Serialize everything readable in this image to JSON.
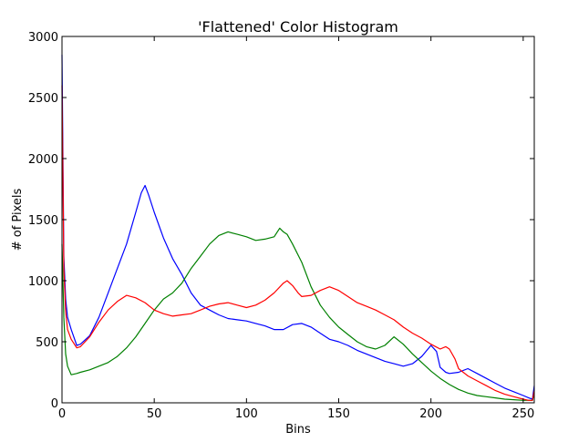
{
  "chart_data": {
    "type": "line",
    "title": "'Flattened' Color Histogram",
    "xlabel": "Bins",
    "ylabel": "# of Pixels",
    "xlim": [
      0,
      256
    ],
    "ylim": [
      0,
      3000
    ],
    "xticks": [
      0,
      50,
      100,
      150,
      200,
      250
    ],
    "yticks": [
      0,
      500,
      1000,
      1500,
      2000,
      2500,
      3000
    ],
    "grid": false,
    "series": [
      {
        "color": "#0000ff",
        "x": [
          0,
          1,
          2,
          3,
          5,
          8,
          10,
          15,
          20,
          25,
          30,
          35,
          40,
          43,
          45,
          47,
          50,
          55,
          60,
          65,
          70,
          75,
          80,
          85,
          90,
          95,
          100,
          105,
          110,
          115,
          120,
          125,
          130,
          135,
          140,
          145,
          150,
          155,
          160,
          165,
          170,
          175,
          180,
          185,
          190,
          195,
          200,
          203,
          205,
          208,
          210,
          215,
          220,
          225,
          230,
          235,
          240,
          245,
          250,
          253,
          255,
          256
        ],
        "values": [
          2850,
          1200,
          850,
          700,
          600,
          470,
          480,
          550,
          700,
          900,
          1100,
          1300,
          1560,
          1720,
          1780,
          1700,
          1560,
          1350,
          1180,
          1050,
          900,
          800,
          760,
          720,
          690,
          680,
          670,
          650,
          630,
          600,
          600,
          640,
          650,
          620,
          570,
          520,
          500,
          470,
          430,
          400,
          370,
          340,
          320,
          300,
          320,
          380,
          470,
          420,
          290,
          250,
          240,
          250,
          280,
          240,
          200,
          160,
          120,
          90,
          60,
          40,
          30,
          140
        ]
      },
      {
        "color": "#008000",
        "x": [
          0,
          1,
          2,
          3,
          5,
          8,
          10,
          15,
          20,
          25,
          30,
          35,
          40,
          45,
          50,
          55,
          60,
          65,
          70,
          75,
          80,
          85,
          90,
          95,
          100,
          105,
          110,
          115,
          118,
          120,
          122,
          125,
          130,
          135,
          140,
          145,
          150,
          155,
          160,
          165,
          170,
          175,
          180,
          185,
          190,
          195,
          200,
          205,
          210,
          215,
          220,
          225,
          230,
          235,
          240,
          245,
          250,
          253,
          255,
          256
        ],
        "values": [
          1300,
          700,
          400,
          300,
          230,
          240,
          250,
          270,
          300,
          330,
          380,
          450,
          540,
          650,
          760,
          850,
          900,
          980,
          1100,
          1200,
          1300,
          1370,
          1400,
          1380,
          1360,
          1330,
          1340,
          1360,
          1430,
          1400,
          1380,
          1300,
          1150,
          950,
          800,
          700,
          620,
          560,
          500,
          460,
          440,
          470,
          540,
          480,
          400,
          330,
          260,
          200,
          150,
          110,
          80,
          60,
          50,
          40,
          30,
          25,
          20,
          20,
          20,
          80
        ]
      },
      {
        "color": "#ff0000",
        "x": [
          0,
          1,
          2,
          3,
          5,
          8,
          10,
          15,
          20,
          25,
          30,
          35,
          40,
          45,
          50,
          55,
          60,
          65,
          70,
          75,
          80,
          85,
          90,
          95,
          100,
          105,
          110,
          115,
          120,
          122,
          125,
          128,
          130,
          135,
          140,
          145,
          150,
          155,
          160,
          165,
          170,
          175,
          180,
          185,
          190,
          195,
          200,
          205,
          208,
          210,
          213,
          215,
          220,
          225,
          230,
          235,
          240,
          245,
          250,
          253,
          255,
          256
        ],
        "values": [
          2600,
          1100,
          750,
          600,
          520,
          450,
          460,
          540,
          660,
          760,
          830,
          880,
          860,
          820,
          760,
          730,
          710,
          720,
          730,
          760,
          790,
          810,
          820,
          800,
          780,
          800,
          840,
          900,
          980,
          1000,
          960,
          900,
          870,
          880,
          920,
          950,
          920,
          870,
          820,
          790,
          760,
          720,
          680,
          620,
          570,
          530,
          480,
          440,
          460,
          440,
          360,
          280,
          220,
          180,
          140,
          100,
          70,
          50,
          30,
          20,
          20,
          100
        ]
      }
    ]
  }
}
